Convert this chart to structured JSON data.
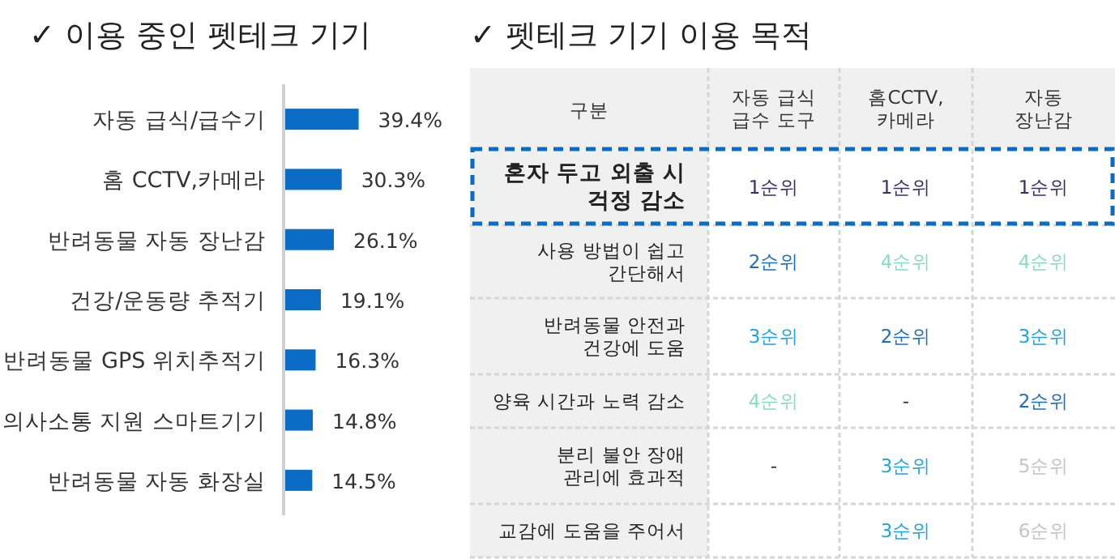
{
  "chart_data": [
    {
      "type": "bar",
      "orientation": "horizontal",
      "title": "✓  이용 중인 펫테크 기기",
      "categories": [
        "자동 급식/급수기",
        "홈 CCTV,카메라",
        "반려동물 자동 장난감",
        "건강/운동량 추적기",
        "반려동물 GPS 위치추적기",
        "의사소통 지원 스마트기기",
        "반려동물 자동 화장실"
      ],
      "values": [
        39.4,
        30.3,
        26.1,
        19.1,
        16.3,
        14.8,
        14.5
      ],
      "value_labels": [
        "39.4%",
        "30.3%",
        "26.1%",
        "19.1%",
        "16.3%",
        "14.8%",
        "14.5%"
      ],
      "color": "#0a6cc4"
    },
    {
      "type": "heatmap",
      "title": "✓  펫테크 기기 이용 목적",
      "ylabel": "구분",
      "categories": [
        "자동 급식\n급수 도구",
        "홈CCTV,\n카메라",
        "자동\n장난감"
      ],
      "y_categories": [
        "혼자 두고 외출 시\n걱정 감소",
        "사용 방법이 쉽고\n간단해서",
        "반려동물 안전과\n건강에 도움",
        "양육 시간과 노력 감소",
        "분리 불안 장애\n관리에 효과적",
        "교감에 도움을 주어서"
      ],
      "cells": [
        [
          1,
          1,
          1
        ],
        [
          2,
          4,
          4
        ],
        [
          3,
          2,
          3
        ],
        [
          4,
          null,
          2
        ],
        [
          null,
          3,
          5
        ],
        [
          null,
          3,
          6
        ]
      ],
      "cell_labels": [
        [
          "1순위",
          "1순위",
          "1순위"
        ],
        [
          "2순위",
          "4순위",
          "4순위"
        ],
        [
          "3순위",
          "2순위",
          "3순위"
        ],
        [
          "4순위",
          "-",
          "2순위"
        ],
        [
          "-",
          "3순위",
          "5순위"
        ],
        [
          null,
          "3순위",
          "6순위"
        ]
      ]
    }
  ]
}
